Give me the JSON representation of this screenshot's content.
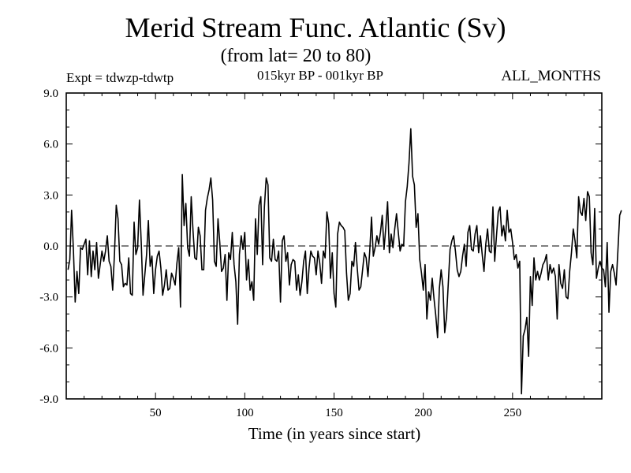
{
  "chart_data": {
    "type": "line",
    "title": "Merid Stream Func. Atlantic (Sv)",
    "subtitle": "(from lat= 20 to 80)",
    "annotations": {
      "left": "Expt = tdwzp-tdwtp",
      "center": "015kyr BP - 001kyr BP",
      "right": "ALL_MONTHS"
    },
    "xlabel": "Time (in years since start)",
    "ylabel": "",
    "xlim": [
      0,
      300
    ],
    "ylim": [
      -9.0,
      9.0
    ],
    "x_ticks": [
      50,
      100,
      150,
      200,
      250
    ],
    "x_tick_labels": [
      "50",
      "100",
      "150",
      "200",
      "250"
    ],
    "y_ticks": [
      -9,
      -6,
      -3,
      0,
      3,
      6,
      9
    ],
    "y_tick_labels": [
      "-9.0",
      "-6.0",
      "-3.0",
      "0.0",
      "3.0",
      "6.0",
      "9.0"
    ],
    "reference_line": {
      "y": 0,
      "style": "dashed"
    },
    "grid": false,
    "series": [
      {
        "x_start": 1,
        "x_step": 1,
        "values": [
          -1.4,
          -0.8,
          2.1,
          -0.2,
          -3.3,
          -1.5,
          -2.8,
          -0.1,
          -0.2,
          0.1,
          0.4,
          -1.7,
          0.3,
          -1.8,
          -0.3,
          -1.4,
          0.2,
          -1.9,
          -1.1,
          -0.3,
          -0.9,
          -0.3,
          0.6,
          -0.9,
          -1.2,
          -2.6,
          -0.5,
          2.4,
          1.6,
          -0.9,
          -1.1,
          -2.4,
          -2.2,
          -2.3,
          -0.7,
          -2.8,
          -2.9,
          1.4,
          -0.5,
          -0.1,
          2.7,
          0.2,
          -2.9,
          -1.7,
          -0.5,
          1.5,
          -1.2,
          -0.6,
          -2.8,
          -1.4,
          -0.6,
          -0.3,
          -1.3,
          -2.9,
          -2.3,
          -1.4,
          -2.6,
          -2.5,
          -1.6,
          -1.9,
          -2.3,
          -1.0,
          -0.1,
          -3.6,
          4.2,
          1.2,
          2.5,
          -0.1,
          -0.6,
          2.9,
          0.9,
          -0.7,
          -0.8,
          1.1,
          0.6,
          -1.4,
          -1.4,
          2.1,
          2.8,
          3.3,
          4.0,
          2.7,
          -0.9,
          -1.2,
          1.6,
          0.2,
          -1.5,
          -1.3,
          -0.5,
          -3.2,
          -0.4,
          -0.8,
          0.8,
          -1.1,
          -2.1,
          -4.6,
          -0.5,
          0.6,
          -0.2,
          0.8,
          -2.0,
          -0.8,
          -2.6,
          -2.1,
          -3.2,
          1.6,
          -0.5,
          2.4,
          2.9,
          -1.1,
          2.3,
          4.0,
          3.6,
          -0.7,
          -0.9,
          0.4,
          -0.8,
          -0.9,
          -0.3,
          -3.3,
          0.3,
          0.6,
          -0.9,
          -0.4,
          -2.3,
          -1.1,
          -0.8,
          -0.9,
          -2.6,
          -1.7,
          -2.9,
          -2.1,
          -0.9,
          -0.3,
          -2.8,
          -1.3,
          -0.3,
          -0.6,
          -0.7,
          -1.7,
          -0.3,
          -1.0,
          -2.2,
          -0.3,
          -0.7,
          2.0,
          1.3,
          -1.9,
          -0.4,
          -2.8,
          -3.6,
          0.7,
          1.4,
          1.2,
          1.1,
          0.9,
          -1.6,
          -3.2,
          -2.8,
          -0.9,
          -1.2,
          0.2,
          -1.3,
          -2.6,
          -2.4,
          -1.4,
          -0.4,
          -0.7,
          -1.8,
          -0.3,
          1.7,
          -0.6,
          -0.1,
          0.6,
          0.1,
          0.8,
          1.8,
          -0.2,
          1.1,
          2.6,
          -0.4,
          0.7,
          -0.1,
          1.0,
          1.9,
          0.8,
          -0.3,
          0.1,
          0.0,
          2.6,
          3.5,
          4.9,
          6.9,
          4.1,
          3.6,
          1.1,
          1.9,
          -0.8,
          -1.6,
          -2.6,
          -1.1,
          -4.3,
          -2.7,
          -3.2,
          -1.9,
          -3.1,
          -4.1,
          -5.4,
          -2.5,
          -1.4,
          -2.4,
          -5.1,
          -4.2,
          -2.2,
          -0.2,
          0.3,
          0.6,
          -0.3,
          -1.4,
          -1.8,
          -1.5,
          -0.6,
          0.1,
          -1.2,
          0.8,
          1.2,
          -0.2,
          -0.3,
          0.7,
          1.2,
          -0.4,
          0.6,
          -0.5,
          -1.5,
          0.1,
          1.0,
          -0.3,
          -0.4,
          2.3,
          -0.9,
          0.6,
          2.0,
          2.3,
          0.6,
          1.2,
          0.3,
          2.1,
          0.8,
          1.0,
          0.2,
          -0.8,
          -0.5,
          -1.3,
          -0.9,
          -8.7,
          -5.3,
          -4.9,
          -4.2,
          -6.5,
          -1.8,
          -3.5,
          -0.7,
          -2.0,
          -1.5,
          -2.0,
          -1.6,
          -1.1,
          -0.9,
          -0.5,
          -2.0,
          -1.1,
          -1.6,
          -1.3,
          -1.8,
          -4.3,
          -1.1,
          -2.2,
          -2.5,
          -1.4,
          -3.0,
          -3.1,
          -1.5,
          -0.4,
          1.0,
          0.3,
          -0.7,
          2.9,
          2.0,
          1.8,
          2.8,
          1.5,
          3.2,
          2.9,
          -0.4,
          -1.1,
          2.2,
          -1.9,
          -1.3,
          -0.9,
          -1.3,
          -1.4,
          -2.4,
          0.2,
          -3.9,
          -1.5,
          -1.1,
          -1.6,
          -2.3,
          -0.3,
          1.8,
          2.1
        ]
      }
    ]
  }
}
